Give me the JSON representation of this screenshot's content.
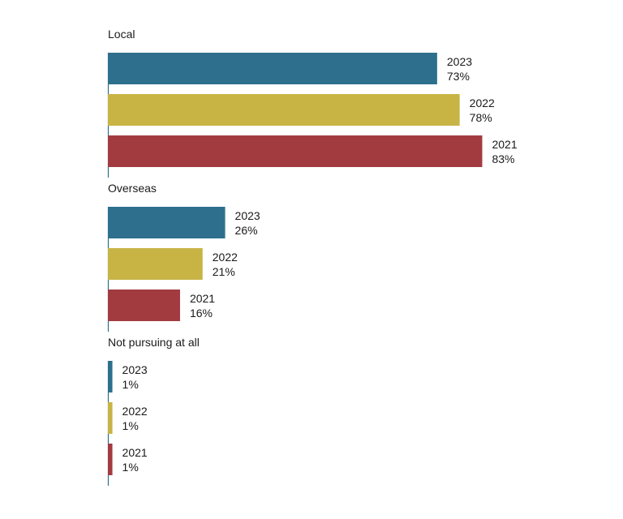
{
  "chart_data": {
    "type": "bar",
    "orientation": "horizontal",
    "groups": [
      {
        "label": "Local",
        "bars": [
          {
            "year": "2023",
            "value": 73,
            "value_label": "73%"
          },
          {
            "year": "2022",
            "value": 78,
            "value_label": "78%"
          },
          {
            "year": "2021",
            "value": 83,
            "value_label": "83%"
          }
        ]
      },
      {
        "label": "Overseas",
        "bars": [
          {
            "year": "2023",
            "value": 26,
            "value_label": "26%"
          },
          {
            "year": "2022",
            "value": 21,
            "value_label": "21%"
          },
          {
            "year": "2021",
            "value": 16,
            "value_label": "16%"
          }
        ]
      },
      {
        "label": "Not pursuing at all",
        "bars": [
          {
            "year": "2023",
            "value": 1,
            "value_label": "1%"
          },
          {
            "year": "2022",
            "value": 1,
            "value_label": "1%"
          },
          {
            "year": "2021",
            "value": 1,
            "value_label": "1%"
          }
        ]
      }
    ],
    "colors": {
      "2023": "#2e6f8e",
      "2022": "#c8b445",
      "2021": "#a23b40"
    },
    "grid": false,
    "legend": "none"
  }
}
